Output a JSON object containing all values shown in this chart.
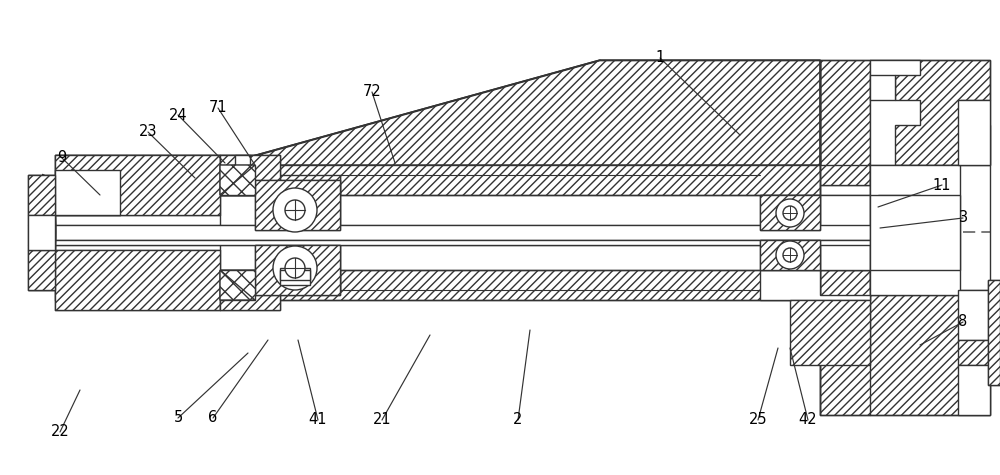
{
  "bg_color": "#ffffff",
  "line_color": "#333333",
  "label_fontsize": 10.5,
  "annotations": [
    [
      "1",
      660,
      58,
      740,
      135
    ],
    [
      "3",
      963,
      218,
      880,
      228
    ],
    [
      "5",
      178,
      418,
      248,
      353
    ],
    [
      "6",
      213,
      418,
      268,
      340
    ],
    [
      "8",
      963,
      322,
      920,
      345
    ],
    [
      "9",
      62,
      158,
      100,
      195
    ],
    [
      "11",
      942,
      185,
      878,
      207
    ],
    [
      "21",
      382,
      420,
      430,
      335
    ],
    [
      "22",
      60,
      432,
      80,
      390
    ],
    [
      "23",
      148,
      132,
      195,
      178
    ],
    [
      "24",
      178,
      115,
      225,
      163
    ],
    [
      "25",
      758,
      420,
      778,
      348
    ],
    [
      "41",
      318,
      420,
      298,
      340
    ],
    [
      "42",
      808,
      420,
      790,
      348
    ],
    [
      "71",
      218,
      108,
      255,
      165
    ],
    [
      "72",
      372,
      92,
      395,
      163
    ],
    [
      "2",
      518,
      420,
      530,
      330
    ]
  ]
}
